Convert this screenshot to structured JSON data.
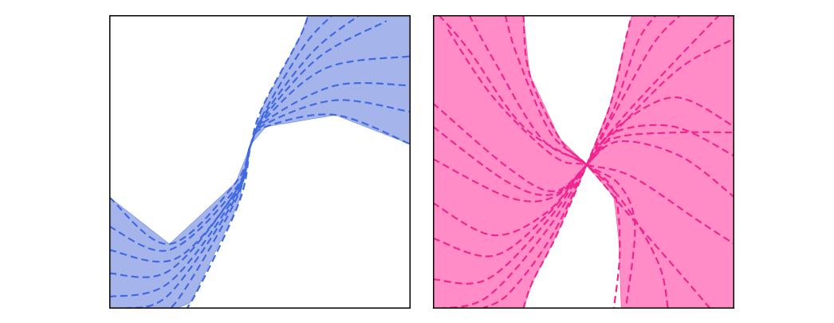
{
  "chart_data": [
    {
      "type": "line",
      "title": "",
      "xlabel": "",
      "ylabel": "",
      "grid": false,
      "legend": "none",
      "xlim": [
        0,
        1
      ],
      "ylim": [
        0,
        1
      ],
      "colors": {
        "band": "#a5b4ea",
        "line": "#4169e1",
        "band_edge": "#7f98e6"
      },
      "style": "dashed curves converging at a central point, with a filled envelope band",
      "convergence_point": [
        0.47,
        0.56
      ],
      "curves": [
        {
          "x": [
            0.0,
            0.2,
            0.42,
            0.47,
            0.52,
            0.75,
            1.0
          ],
          "y": [
            0.38,
            0.22,
            0.43,
            0.56,
            0.62,
            0.66,
            0.56
          ]
        },
        {
          "x": [
            0.0,
            0.2,
            0.42,
            0.47,
            0.52,
            0.75,
            1.0
          ],
          "y": [
            0.28,
            0.2,
            0.41,
            0.56,
            0.63,
            0.71,
            0.67
          ]
        },
        {
          "x": [
            0.0,
            0.22,
            0.42,
            0.47,
            0.52,
            0.75,
            1.0
          ],
          "y": [
            0.2,
            0.17,
            0.4,
            0.56,
            0.64,
            0.76,
            0.76
          ]
        },
        {
          "x": [
            0.0,
            0.2,
            0.42,
            0.47,
            0.52,
            0.72,
            1.0
          ],
          "y": [
            0.12,
            0.13,
            0.4,
            0.56,
            0.65,
            0.82,
            0.86
          ]
        },
        {
          "x": [
            0.0,
            0.2,
            0.42,
            0.47,
            0.52,
            0.7,
            0.92
          ],
          "y": [
            0.04,
            0.09,
            0.39,
            0.56,
            0.66,
            0.86,
            0.98
          ]
        },
        {
          "x": [
            0.05,
            0.2,
            0.42,
            0.47,
            0.52,
            0.68,
            0.83
          ],
          "y": [
            0.0,
            0.05,
            0.38,
            0.56,
            0.67,
            0.88,
            1.0
          ]
        },
        {
          "x": [
            0.14,
            0.22,
            0.42,
            0.47,
            0.52,
            0.65,
            0.74
          ],
          "y": [
            0.0,
            0.02,
            0.37,
            0.56,
            0.68,
            0.9,
            1.0
          ]
        },
        {
          "x": [
            0.22,
            0.27,
            0.43,
            0.47,
            0.51,
            0.63,
            0.66
          ],
          "y": [
            0.0,
            0.02,
            0.36,
            0.56,
            0.69,
            0.92,
            1.0
          ]
        }
      ]
    },
    {
      "type": "line",
      "title": "",
      "xlabel": "",
      "ylabel": "",
      "grid": false,
      "legend": "none",
      "xlim": [
        0,
        1
      ],
      "ylim": [
        0,
        1
      ],
      "colors": {
        "band": "#ff8cc6",
        "line": "#f0258e",
        "band_edge": "#f06aaf"
      },
      "style": "dashed curves converging at a central point, with a filled envelope band",
      "convergence_point": [
        0.51,
        0.49
      ],
      "curves": [
        {
          "x": [
            0.0,
            0.25,
            0.4,
            0.51,
            0.6,
            0.8,
            1.0
          ],
          "y": [
            0.51,
            0.38,
            0.38,
            0.49,
            0.6,
            0.62,
            0.52
          ]
        },
        {
          "x": [
            0.0,
            0.25,
            0.4,
            0.51,
            0.6,
            0.8,
            1.0
          ],
          "y": [
            0.62,
            0.43,
            0.39,
            0.49,
            0.61,
            0.72,
            0.62
          ]
        },
        {
          "x": [
            0.0,
            0.25,
            0.4,
            0.51,
            0.62,
            0.82,
            1.0
          ],
          "y": [
            0.7,
            0.48,
            0.4,
            0.49,
            0.62,
            0.82,
            0.92
          ]
        },
        {
          "x": [
            0.0,
            0.2,
            0.38,
            0.51,
            0.62,
            0.82,
            1.0
          ],
          "y": [
            0.36,
            0.25,
            0.33,
            0.49,
            0.57,
            0.52,
            0.38
          ]
        },
        {
          "x": [
            0.0,
            0.2,
            0.38,
            0.51,
            0.6,
            0.8,
            1.0
          ],
          "y": [
            0.24,
            0.18,
            0.32,
            0.49,
            0.58,
            0.6,
            0.6
          ]
        },
        {
          "x": [
            0.0,
            0.18,
            0.38,
            0.51,
            0.62,
            0.8,
            0.95
          ],
          "y": [
            0.1,
            0.1,
            0.3,
            0.49,
            0.64,
            0.84,
            1.0
          ]
        },
        {
          "x": [
            0.02,
            0.18,
            0.38,
            0.51,
            0.6,
            0.73,
            0.82
          ],
          "y": [
            0.0,
            0.04,
            0.27,
            0.49,
            0.66,
            0.9,
            1.0
          ]
        },
        {
          "x": [
            0.16,
            0.25,
            0.39,
            0.51,
            0.6,
            0.68,
            0.74
          ],
          "y": [
            0.0,
            0.05,
            0.24,
            0.49,
            0.68,
            0.91,
            1.0
          ]
        },
        {
          "x": [
            0.3,
            0.33,
            0.41,
            0.51,
            0.59,
            0.64,
            0.66
          ],
          "y": [
            0.0,
            0.09,
            0.25,
            0.49,
            0.7,
            0.92,
            1.0
          ]
        },
        {
          "x": [
            0.02,
            0.12,
            0.3,
            0.51,
            0.62,
            0.67,
            0.64
          ],
          "y": [
            1.0,
            0.88,
            0.62,
            0.49,
            0.42,
            0.28,
            0.0
          ]
        },
        {
          "x": [
            0.12,
            0.2,
            0.36,
            0.51,
            0.64,
            0.75,
            0.78
          ],
          "y": [
            1.0,
            0.85,
            0.58,
            0.49,
            0.35,
            0.15,
            0.0
          ]
        },
        {
          "x": [
            0.24,
            0.28,
            0.39,
            0.51,
            0.65,
            0.82,
            0.92
          ],
          "y": [
            1.0,
            0.86,
            0.6,
            0.49,
            0.32,
            0.12,
            0.0
          ]
        },
        {
          "x": [
            0.3,
            0.32,
            0.42,
            0.51,
            0.6,
            0.62,
            0.6
          ],
          "y": [
            1.0,
            0.8,
            0.58,
            0.49,
            0.4,
            0.2,
            0.0
          ]
        },
        {
          "x": [
            0.05,
            0.2,
            0.4,
            0.51,
            0.66,
            0.88,
            1.0
          ],
          "y": [
            0.95,
            0.72,
            0.52,
            0.49,
            0.45,
            0.3,
            0.22
          ]
        }
      ]
    }
  ]
}
